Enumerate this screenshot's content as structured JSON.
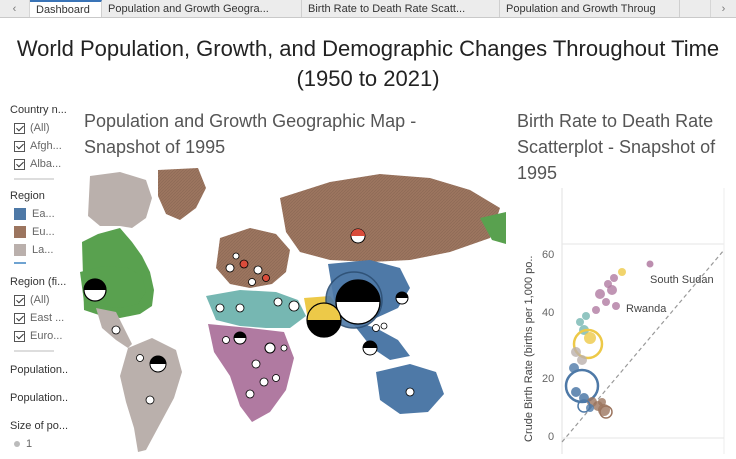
{
  "tabs": {
    "items": [
      {
        "label": "Dashboard"
      },
      {
        "label": "Population and Growth Geogra..."
      },
      {
        "label": "Birth Rate to Death Rate Scatt..."
      },
      {
        "label": "Population and Growth Throug"
      }
    ]
  },
  "dashboard": {
    "title": "World Population, Growth, and Demographic Changes Throughout Time (1950 to 2021)"
  },
  "filters": {
    "country": {
      "header": "Country n...",
      "items": [
        "(All)",
        "Afgh...",
        "Alba..."
      ]
    },
    "region": {
      "header": "Region",
      "items": [
        {
          "label": "Ea...",
          "color": "#4e79a7"
        },
        {
          "label": "Eu...",
          "color": "#9c755f"
        },
        {
          "label": "La...",
          "color": "#bab0ac"
        }
      ]
    },
    "region_filter": {
      "header": "Region (fi...",
      "items": [
        "(All)",
        "East ...",
        "Euro..."
      ]
    },
    "population1": "Population..",
    "population2": "Population..",
    "size": {
      "header": "Size of po...",
      "legend_value": "1"
    }
  },
  "map": {
    "title": "Population and Growth Geographic Map - Snapshot of 1995",
    "colors": {
      "east_asia": "#4e79a7",
      "europe": "#9c755f",
      "latam": "#bab0ac",
      "africa": "#b07aa1",
      "mena": "#76b7b2",
      "south_asia": "#edc948",
      "north_america": "#59a14f"
    }
  },
  "scatter": {
    "title": "Birth Rate to Death Rate Scatterplot - Snapshot of 1995",
    "ylabel": "Crude Birth Rate (births per 1,000 po..",
    "yticks": [
      "0",
      "20",
      "40",
      "60"
    ],
    "annotations": [
      "South Sudan",
      "Rwanda"
    ]
  }
}
